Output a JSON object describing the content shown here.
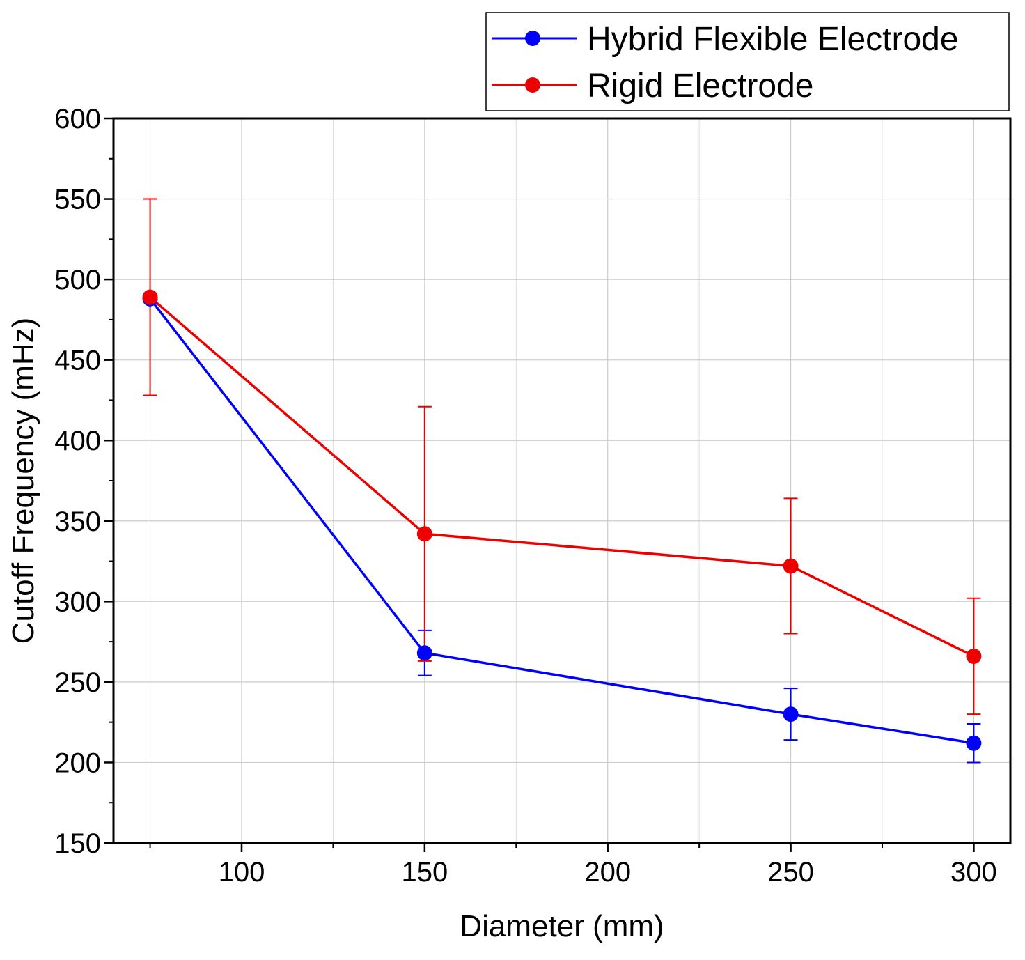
{
  "chart_data": {
    "type": "line",
    "title": "",
    "xlabel": "Diameter (mm)",
    "ylabel": "Cutoff Frequency (mHz)",
    "xlim": [
      65,
      310
    ],
    "ylim": [
      150,
      600
    ],
    "xticks": [
      100,
      150,
      200,
      250,
      300
    ],
    "xtick_labels": [
      "100",
      "150",
      "200",
      "250",
      "300"
    ],
    "xminor": [
      75,
      125,
      175,
      225,
      275
    ],
    "yticks": [
      150,
      200,
      250,
      300,
      350,
      400,
      450,
      500,
      550,
      600
    ],
    "ytick_labels": [
      "150",
      "200",
      "250",
      "300",
      "350",
      "400",
      "450",
      "500",
      "550",
      "600"
    ],
    "yminor": [
      175,
      225,
      275,
      325,
      375,
      425,
      475,
      525,
      575
    ],
    "grid": true,
    "legend_position": "top-right, outside above plot",
    "series": [
      {
        "name": "Hybrid Flexible Electrode",
        "color": "#0000ff",
        "x": [
          75,
          150,
          250,
          300
        ],
        "y": [
          488,
          268,
          230,
          212
        ],
        "err_low": [
          488,
          254,
          214,
          200
        ],
        "err_high": [
          488,
          282,
          246,
          224
        ]
      },
      {
        "name": "Rigid Electrode",
        "color": "#ee0000",
        "x": [
          75,
          150,
          250,
          300
        ],
        "y": [
          489,
          342,
          322,
          266
        ],
        "err_low": [
          428,
          263,
          280,
          230
        ],
        "err_high": [
          550,
          421,
          364,
          302
        ]
      }
    ]
  }
}
